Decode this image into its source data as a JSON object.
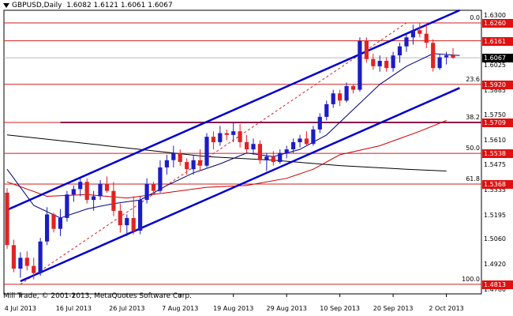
{
  "header": {
    "symbol_timeframe": "GBPUSD,Daily",
    "ohlc": "1.6082 1.6121 1.6061 1.6067"
  },
  "copyright": "Mill Trade, © 2001-2013, MetaQuotes Software Corp.",
  "colors": {
    "bull_candle": "#1c1cc6",
    "bear_candle": "#e22323",
    "channel_line": "#0000cd",
    "fib_line": "#cc2222",
    "level_line": "#8b1a4a",
    "ma_fast": "#000080",
    "ma_mid": "#cc0000",
    "ma_slow": "#000000",
    "price_tag_red": "#e01010",
    "price_tag_current": "#000000"
  },
  "fib_levels": [
    {
      "label": "0.0",
      "price": 1.626
    },
    {
      "label": "23.6",
      "price": 1.592
    },
    {
      "label": "38.2",
      "price": 1.5709
    },
    {
      "label": "50.0",
      "price": 1.5538
    },
    {
      "label": "61.8",
      "price": 1.5368
    },
    {
      "label": "100.0",
      "price": 1.4813
    }
  ],
  "price_tags": [
    {
      "text": "1.6260",
      "price": 1.626,
      "kind": "fib"
    },
    {
      "text": "1.6161",
      "price": 1.6161,
      "kind": "fib"
    },
    {
      "text": "1.6067",
      "price": 1.6067,
      "kind": "current"
    },
    {
      "text": "1.5920",
      "price": 1.592,
      "kind": "fib"
    },
    {
      "text": "1.5709",
      "price": 1.5709,
      "kind": "fib"
    },
    {
      "text": "1.5538",
      "price": 1.5538,
      "kind": "fib"
    },
    {
      "text": "1.5368",
      "price": 1.5368,
      "kind": "fib"
    },
    {
      "text": "1.4813",
      "price": 1.4813,
      "kind": "fib"
    }
  ],
  "y_ticks": [
    {
      "text": "1.6300",
      "price": 1.63
    },
    {
      "text": "1.6025",
      "price": 1.6025
    },
    {
      "text": "1.5885",
      "price": 1.5885
    },
    {
      "text": "1.5750",
      "price": 1.575
    },
    {
      "text": "1.5610",
      "price": 1.561
    },
    {
      "text": "1.5475",
      "price": 1.5475
    },
    {
      "text": "1.5335",
      "price": 1.5335
    },
    {
      "text": "1.5195",
      "price": 1.5195
    },
    {
      "text": "1.5060",
      "price": 1.506
    },
    {
      "text": "1.4920",
      "price": 1.492
    },
    {
      "text": "1.4780",
      "price": 1.478
    }
  ],
  "chart_data": {
    "type": "candlestick",
    "symbol": "GBPUSD",
    "timeframe": "Daily",
    "x_labels": [
      {
        "text": "4 Jul 2013",
        "index": 2
      },
      {
        "text": "16 Jul 2013",
        "index": 10
      },
      {
        "text": "26 Jul 2013",
        "index": 18
      },
      {
        "text": "7 Aug 2013",
        "index": 26
      },
      {
        "text": "19 Aug 2013",
        "index": 34
      },
      {
        "text": "29 Aug 2013",
        "index": 42
      },
      {
        "text": "10 Sep 2013",
        "index": 50
      },
      {
        "text": "20 Sep 2013",
        "index": 58
      },
      {
        "text": "2 Oct 2013",
        "index": 66
      }
    ],
    "ylim": [
      1.476,
      1.633
    ],
    "candles": [
      {
        "o": 1.532,
        "h": 1.5345,
        "l": 1.501,
        "c": 1.503
      },
      {
        "o": 1.503,
        "h": 1.506,
        "l": 1.488,
        "c": 1.49
      },
      {
        "o": 1.49,
        "h": 1.499,
        "l": 1.485,
        "c": 1.496
      },
      {
        "o": 1.496,
        "h": 1.4995,
        "l": 1.489,
        "c": 1.4915
      },
      {
        "o": 1.4915,
        "h": 1.496,
        "l": 1.484,
        "c": 1.4875
      },
      {
        "o": 1.4875,
        "h": 1.507,
        "l": 1.486,
        "c": 1.505
      },
      {
        "o": 1.505,
        "h": 1.524,
        "l": 1.503,
        "c": 1.52
      },
      {
        "o": 1.52,
        "h": 1.521,
        "l": 1.51,
        "c": 1.512
      },
      {
        "o": 1.512,
        "h": 1.523,
        "l": 1.508,
        "c": 1.518
      },
      {
        "o": 1.518,
        "h": 1.533,
        "l": 1.516,
        "c": 1.531
      },
      {
        "o": 1.531,
        "h": 1.536,
        "l": 1.527,
        "c": 1.534
      },
      {
        "o": 1.534,
        "h": 1.54,
        "l": 1.53,
        "c": 1.538
      },
      {
        "o": 1.538,
        "h": 1.54,
        "l": 1.526,
        "c": 1.528
      },
      {
        "o": 1.528,
        "h": 1.533,
        "l": 1.522,
        "c": 1.53
      },
      {
        "o": 1.53,
        "h": 1.539,
        "l": 1.528,
        "c": 1.537
      },
      {
        "o": 1.537,
        "h": 1.541,
        "l": 1.532,
        "c": 1.533
      },
      {
        "o": 1.533,
        "h": 1.538,
        "l": 1.519,
        "c": 1.522
      },
      {
        "o": 1.522,
        "h": 1.526,
        "l": 1.51,
        "c": 1.514
      },
      {
        "o": 1.514,
        "h": 1.52,
        "l": 1.508,
        "c": 1.518
      },
      {
        "o": 1.518,
        "h": 1.53,
        "l": 1.509,
        "c": 1.511
      },
      {
        "o": 1.511,
        "h": 1.53,
        "l": 1.509,
        "c": 1.528
      },
      {
        "o": 1.528,
        "h": 1.54,
        "l": 1.526,
        "c": 1.537
      },
      {
        "o": 1.537,
        "h": 1.538,
        "l": 1.531,
        "c": 1.533
      },
      {
        "o": 1.533,
        "h": 1.55,
        "l": 1.532,
        "c": 1.546
      },
      {
        "o": 1.546,
        "h": 1.553,
        "l": 1.542,
        "c": 1.55
      },
      {
        "o": 1.55,
        "h": 1.558,
        "l": 1.546,
        "c": 1.554
      },
      {
        "o": 1.554,
        "h": 1.556,
        "l": 1.547,
        "c": 1.549
      },
      {
        "o": 1.549,
        "h": 1.551,
        "l": 1.542,
        "c": 1.545
      },
      {
        "o": 1.545,
        "h": 1.553,
        "l": 1.542,
        "c": 1.55
      },
      {
        "o": 1.55,
        "h": 1.556,
        "l": 1.544,
        "c": 1.547
      },
      {
        "o": 1.547,
        "h": 1.565,
        "l": 1.546,
        "c": 1.563
      },
      {
        "o": 1.563,
        "h": 1.566,
        "l": 1.556,
        "c": 1.56
      },
      {
        "o": 1.56,
        "h": 1.569,
        "l": 1.558,
        "c": 1.565
      },
      {
        "o": 1.565,
        "h": 1.567,
        "l": 1.561,
        "c": 1.564
      },
      {
        "o": 1.564,
        "h": 1.571,
        "l": 1.56,
        "c": 1.566
      },
      {
        "o": 1.566,
        "h": 1.57,
        "l": 1.557,
        "c": 1.56
      },
      {
        "o": 1.56,
        "h": 1.564,
        "l": 1.554,
        "c": 1.556
      },
      {
        "o": 1.556,
        "h": 1.562,
        "l": 1.553,
        "c": 1.559
      },
      {
        "o": 1.559,
        "h": 1.561,
        "l": 1.548,
        "c": 1.55
      },
      {
        "o": 1.55,
        "h": 1.554,
        "l": 1.544,
        "c": 1.552
      },
      {
        "o": 1.552,
        "h": 1.555,
        "l": 1.547,
        "c": 1.549
      },
      {
        "o": 1.549,
        "h": 1.556,
        "l": 1.548,
        "c": 1.554
      },
      {
        "o": 1.554,
        "h": 1.558,
        "l": 1.551,
        "c": 1.556
      },
      {
        "o": 1.556,
        "h": 1.562,
        "l": 1.554,
        "c": 1.56
      },
      {
        "o": 1.56,
        "h": 1.564,
        "l": 1.557,
        "c": 1.562
      },
      {
        "o": 1.562,
        "h": 1.566,
        "l": 1.558,
        "c": 1.559
      },
      {
        "o": 1.559,
        "h": 1.569,
        "l": 1.558,
        "c": 1.567
      },
      {
        "o": 1.567,
        "h": 1.576,
        "l": 1.565,
        "c": 1.574
      },
      {
        "o": 1.574,
        "h": 1.583,
        "l": 1.572,
        "c": 1.581
      },
      {
        "o": 1.581,
        "h": 1.589,
        "l": 1.579,
        "c": 1.587
      },
      {
        "o": 1.587,
        "h": 1.589,
        "l": 1.58,
        "c": 1.583
      },
      {
        "o": 1.583,
        "h": 1.593,
        "l": 1.582,
        "c": 1.591
      },
      {
        "o": 1.591,
        "h": 1.592,
        "l": 1.587,
        "c": 1.589
      },
      {
        "o": 1.589,
        "h": 1.618,
        "l": 1.588,
        "c": 1.616
      },
      {
        "o": 1.616,
        "h": 1.618,
        "l": 1.604,
        "c": 1.606
      },
      {
        "o": 1.606,
        "h": 1.609,
        "l": 1.6,
        "c": 1.602
      },
      {
        "o": 1.602,
        "h": 1.608,
        "l": 1.599,
        "c": 1.605
      },
      {
        "o": 1.605,
        "h": 1.607,
        "l": 1.599,
        "c": 1.601
      },
      {
        "o": 1.601,
        "h": 1.61,
        "l": 1.599,
        "c": 1.608
      },
      {
        "o": 1.608,
        "h": 1.615,
        "l": 1.604,
        "c": 1.613
      },
      {
        "o": 1.613,
        "h": 1.62,
        "l": 1.61,
        "c": 1.618
      },
      {
        "o": 1.618,
        "h": 1.625,
        "l": 1.614,
        "c": 1.622
      },
      {
        "o": 1.622,
        "h": 1.626,
        "l": 1.618,
        "c": 1.62
      },
      {
        "o": 1.62,
        "h": 1.625,
        "l": 1.612,
        "c": 1.615
      },
      {
        "o": 1.615,
        "h": 1.617,
        "l": 1.599,
        "c": 1.601
      },
      {
        "o": 1.601,
        "h": 1.609,
        "l": 1.6,
        "c": 1.607
      },
      {
        "o": 1.607,
        "h": 1.61,
        "l": 1.603,
        "c": 1.608
      },
      {
        "o": 1.6082,
        "h": 1.6121,
        "l": 1.6061,
        "c": 1.6067
      }
    ],
    "lines": {
      "channel_upper": [
        [
          0,
          1.5225
        ],
        [
          68,
          1.633
        ]
      ],
      "channel_lower": [
        [
          2,
          1.483
        ],
        [
          68,
          1.59
        ]
      ],
      "fib_retracement": [
        [
          2,
          1.4813
        ],
        [
          60,
          1.626
        ]
      ],
      "ma_fast": [
        [
          0,
          1.545
        ],
        [
          4,
          1.525
        ],
        [
          8,
          1.518
        ],
        [
          12,
          1.523
        ],
        [
          16,
          1.526
        ],
        [
          20,
          1.528
        ],
        [
          24,
          1.536
        ],
        [
          28,
          1.543
        ],
        [
          32,
          1.548
        ],
        [
          36,
          1.554
        ],
        [
          40,
          1.552
        ],
        [
          44,
          1.556
        ],
        [
          48,
          1.564
        ],
        [
          52,
          1.578
        ],
        [
          56,
          1.592
        ],
        [
          60,
          1.602
        ],
        [
          64,
          1.609
        ],
        [
          68,
          1.608
        ]
      ],
      "ma_mid": [
        [
          0,
          1.538
        ],
        [
          6,
          1.53
        ],
        [
          12,
          1.531
        ],
        [
          18,
          1.529
        ],
        [
          24,
          1.532
        ],
        [
          30,
          1.535
        ],
        [
          36,
          1.536
        ],
        [
          42,
          1.54
        ],
        [
          46,
          1.545
        ],
        [
          50,
          1.553
        ],
        [
          56,
          1.558
        ],
        [
          62,
          1.566
        ],
        [
          66,
          1.572
        ]
      ],
      "ma_slow": [
        [
          0,
          1.564
        ],
        [
          10,
          1.56
        ],
        [
          20,
          1.556
        ],
        [
          30,
          1.552
        ],
        [
          40,
          1.55
        ],
        [
          50,
          1.547
        ],
        [
          60,
          1.545
        ],
        [
          66,
          1.544
        ]
      ]
    }
  }
}
